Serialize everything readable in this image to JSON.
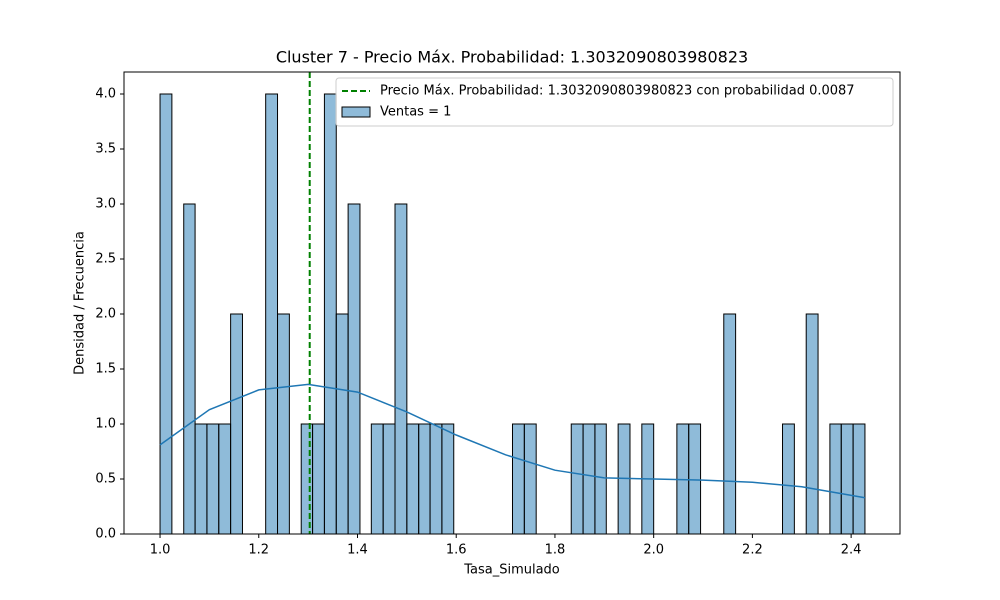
{
  "chart_data": {
    "type": "histogram",
    "title": "Cluster 7 - Precio Máx. Probabilidad: 1.3032090803980823",
    "x_label": "Tasa_Simulado",
    "y_label": "Densidad / Frecuencia",
    "bins": [
      1.0,
      1.024,
      1.048,
      1.071,
      1.095,
      1.119,
      1.143,
      1.167,
      1.19,
      1.214,
      1.238,
      1.262,
      1.286,
      1.309,
      1.333,
      1.357,
      1.381,
      1.405,
      1.428,
      1.452,
      1.476,
      1.5,
      1.524,
      1.547,
      1.571,
      1.595,
      1.619,
      1.643,
      1.666,
      1.69,
      1.714,
      1.738,
      1.762,
      1.785,
      1.809,
      1.833,
      1.857,
      1.881,
      1.904,
      1.928,
      1.952,
      1.976,
      2.0,
      2.023,
      2.047,
      2.071,
      2.095,
      2.119,
      2.142,
      2.166,
      2.19,
      2.214,
      2.238,
      2.261,
      2.285,
      2.309,
      2.333,
      2.357,
      2.38,
      2.404,
      2.428
    ],
    "counts": [
      4,
      0,
      3,
      1,
      1,
      1,
      2,
      0,
      0,
      4,
      2,
      0,
      1,
      1,
      4,
      2,
      3,
      0,
      1,
      1,
      3,
      1,
      1,
      1,
      1,
      0,
      0,
      0,
      0,
      0,
      1,
      1,
      0,
      0,
      0,
      1,
      1,
      1,
      0,
      1,
      0,
      1,
      0,
      0,
      1,
      1,
      0,
      0,
      2,
      0,
      0,
      0,
      0,
      1,
      0,
      2,
      0,
      1,
      1,
      1
    ],
    "series_name": "Ventas = 1",
    "color": "#1f77b4",
    "kde": {
      "x": [
        1.0,
        1.1,
        1.2,
        1.3,
        1.4,
        1.5,
        1.6,
        1.7,
        1.8,
        1.9,
        2.0,
        2.1,
        2.2,
        2.3,
        2.428
      ],
      "values": [
        0.81,
        1.13,
        1.31,
        1.36,
        1.29,
        1.11,
        0.9,
        0.72,
        0.58,
        0.51,
        0.5,
        0.49,
        0.47,
        0.43,
        0.33
      ],
      "color": "#1f77b4"
    },
    "vline": {
      "x": 1.3032090803980823,
      "label": "Precio Máx. Probabilidad: 1.3032090803980823 con probabilidad 0.0087",
      "color": "#008000"
    },
    "xlim": [
      0.927,
      2.499
    ],
    "ylim": [
      0,
      4.2
    ],
    "xticks": [
      {
        "value": 1.0,
        "label": "1.0"
      },
      {
        "value": 1.2,
        "label": "1.2"
      },
      {
        "value": 1.4,
        "label": "1.4"
      },
      {
        "value": 1.6,
        "label": "1.6"
      },
      {
        "value": 1.8,
        "label": "1.8"
      },
      {
        "value": 2.0,
        "label": "2.0"
      },
      {
        "value": 2.2,
        "label": "2.2"
      },
      {
        "value": 2.4,
        "label": "2.4"
      }
    ],
    "yticks": [
      {
        "value": 0,
        "label": "0.0"
      },
      {
        "value": 0.5,
        "label": "0.5"
      },
      {
        "value": 1.0,
        "label": "1.0"
      },
      {
        "value": 1.5,
        "label": "1.5"
      },
      {
        "value": 2.0,
        "label": "2.0"
      },
      {
        "value": 2.5,
        "label": "2.5"
      },
      {
        "value": 3.0,
        "label": "3.0"
      },
      {
        "value": 3.5,
        "label": "3.5"
      },
      {
        "value": 4.0,
        "label": "4.0"
      }
    ],
    "legend": "upper right"
  }
}
